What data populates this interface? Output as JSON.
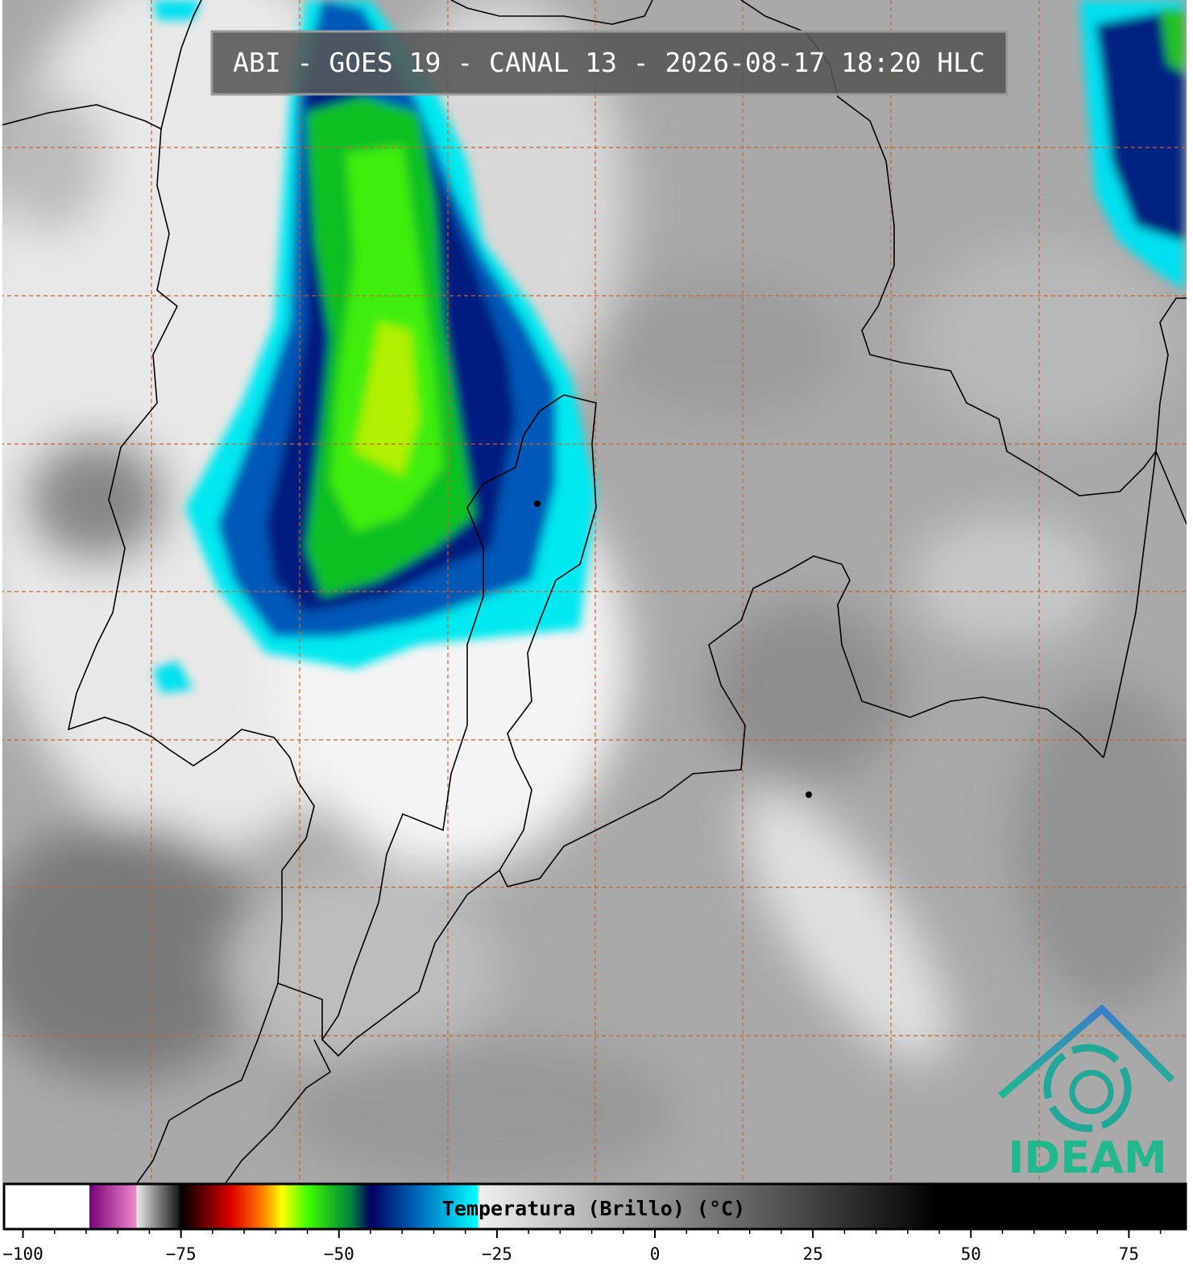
{
  "map": {
    "title": "ABI - GOES 19 - CANAL 13 - 2026-08-17 18:20 HLC",
    "logo": "IDEAM"
  },
  "colorbar": {
    "label": "Temperatura (Brillo) (°C)",
    "lim": [
      -103,
      84
    ],
    "ticks": [
      {
        "value": -100,
        "label": "−100"
      },
      {
        "value": -75,
        "label": "−75"
      },
      {
        "value": -50,
        "label": "−50"
      },
      {
        "value": -25,
        "label": "−25"
      },
      0,
      25,
      50,
      75
    ],
    "minor_ticks": [
      -100,
      -95,
      -90,
      -85,
      -80,
      -75,
      -70,
      -65,
      -60,
      -55,
      -50,
      -45,
      -40,
      -35,
      -30,
      -25,
      -20,
      -15,
      -10,
      -5,
      0,
      5,
      10,
      15,
      20,
      25,
      30,
      35,
      40,
      45,
      50,
      55,
      60,
      65,
      70,
      75,
      80
    ],
    "stops": [
      {
        "value": -103,
        "color": "#ffffff"
      },
      {
        "value": -89.5,
        "color": "#ffffff"
      },
      {
        "value": -89.5,
        "color": "#7a0078"
      },
      {
        "value": -82,
        "color": "#f08ad0"
      },
      {
        "value": -82,
        "color": "#e8e8e8"
      },
      {
        "value": -75.5,
        "color": "#202020"
      },
      {
        "value": -75,
        "color": "#000000"
      },
      {
        "value": -67,
        "color": "#e00000"
      },
      {
        "value": -62,
        "color": "#ff8000"
      },
      {
        "value": -59,
        "color": "#ffff00"
      },
      {
        "value": -55,
        "color": "#40ff00"
      },
      {
        "value": -48,
        "color": "#008040"
      },
      {
        "value": -45,
        "color": "#000060"
      },
      {
        "value": -37,
        "color": "#0070c0"
      },
      {
        "value": -28,
        "color": "#00ffff"
      },
      {
        "value": -28,
        "color": "#f0f0f0"
      },
      {
        "value": 45,
        "color": "#000000"
      },
      {
        "value": 84,
        "color": "#000000"
      }
    ]
  }
}
